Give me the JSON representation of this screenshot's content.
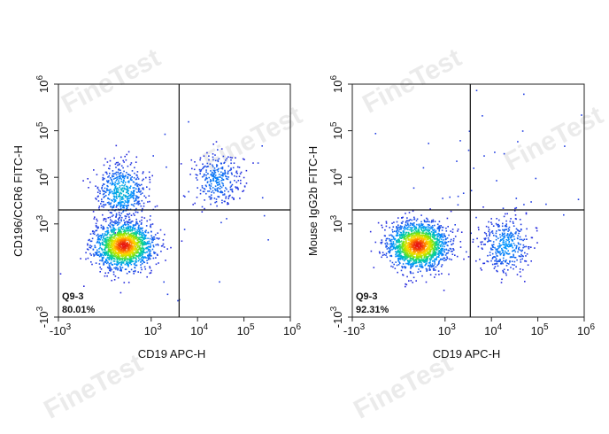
{
  "watermark_text": "FineTest",
  "chart_data": [
    {
      "type": "scatter",
      "subtype": "flow-cytometry-density",
      "xlabel": "CD19 APC-H",
      "ylabel": "CD196/CCR6 FITC-H",
      "x_scale": "biexponential",
      "y_scale": "biexponential",
      "xlim": [
        -1000,
        1000000
      ],
      "ylim": [
        -1000,
        1000000
      ],
      "x_ticks": [
        "-10^3",
        "10^3",
        "10^4",
        "10^5",
        "10^6"
      ],
      "y_ticks": [
        "-10^3",
        "10^3",
        "10^4",
        "10^5",
        "10^6"
      ],
      "gate": {
        "x": 4000,
        "y": 2000
      },
      "quadrant_label": "Q9-3",
      "quadrant_value": "80.01%",
      "populations": [
        {
          "name": "double-negative",
          "x": 400,
          "y": 550,
          "count": 1600
        },
        {
          "name": "CCR6-positive",
          "x": 350,
          "y": 5000,
          "count": 520
        },
        {
          "name": "CD19-CCR6-positive",
          "x": 25000,
          "y": 9000,
          "count": 300
        },
        {
          "name": "scattered",
          "x": 3000,
          "y": 1500,
          "count": 40
        }
      ]
    },
    {
      "type": "scatter",
      "subtype": "flow-cytometry-density",
      "xlabel": "CD19 APC-H",
      "ylabel": "Mouse IgG2b FITC-H",
      "x_scale": "biexponential",
      "y_scale": "biexponential",
      "xlim": [
        -1000,
        1000000
      ],
      "ylim": [
        -1000,
        1000000
      ],
      "x_ticks": [
        "-10^3",
        "10^3",
        "10^4",
        "10^5",
        "10^6"
      ],
      "y_ticks": [
        "-10^3",
        "10^3",
        "10^4",
        "10^5",
        "10^6"
      ],
      "gate": {
        "x": 3500,
        "y": 2000
      },
      "quadrant_label": "Q9-3",
      "quadrant_value": "92.31%",
      "populations": [
        {
          "name": "double-negative",
          "x": 400,
          "y": 550,
          "count": 1700
        },
        {
          "name": "CD19-positive",
          "x": 20000,
          "y": 550,
          "count": 380
        },
        {
          "name": "scattered",
          "x": 8000,
          "y": 8000,
          "count": 45
        }
      ]
    }
  ]
}
